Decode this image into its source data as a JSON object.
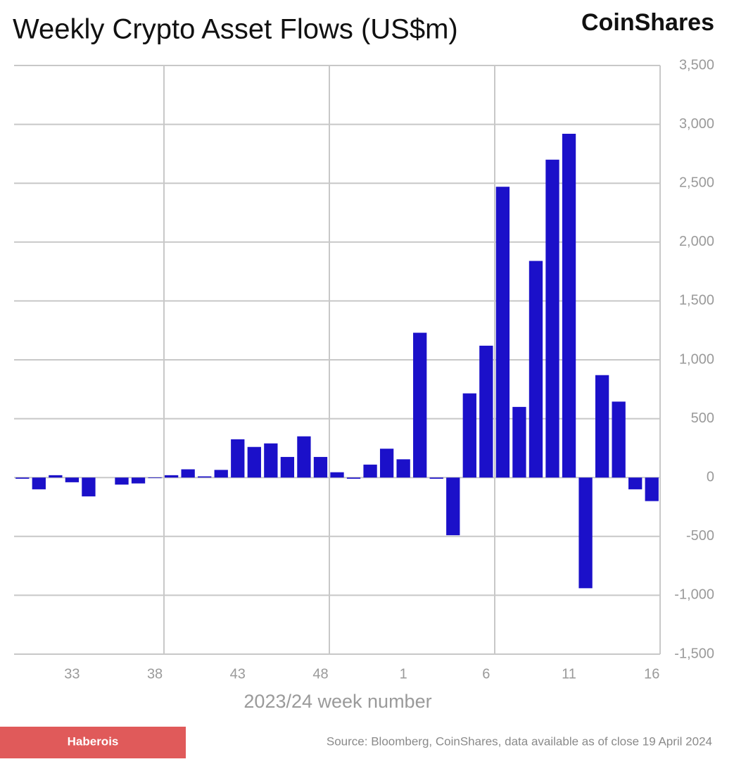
{
  "chart_data": {
    "type": "bar",
    "title": "Weekly Crypto Asset Flows (US$m)",
    "brand": "CoinShares",
    "x_label": "2023/24 week number",
    "source": "Source: Bloomberg, CoinShares, data available as of close 19 April 2024",
    "watermark": "Haberois",
    "categories": [
      null,
      null,
      null,
      "33",
      null,
      null,
      null,
      null,
      "38",
      null,
      null,
      null,
      null,
      "43",
      null,
      null,
      null,
      null,
      "48",
      null,
      null,
      null,
      null,
      "1",
      null,
      null,
      null,
      null,
      "6",
      null,
      null,
      null,
      null,
      "11",
      null,
      null,
      null,
      null,
      "16"
    ],
    "values": [
      -10,
      -100,
      20,
      -40,
      -160,
      0,
      -60,
      -50,
      -5,
      20,
      70,
      10,
      65,
      325,
      260,
      290,
      175,
      350,
      175,
      45,
      -10,
      110,
      245,
      155,
      1230,
      -10,
      -490,
      715,
      1120,
      2470,
      600,
      1840,
      2700,
      2920,
      -940,
      870,
      645,
      -100,
      -200
    ],
    "color": "#1b10c9",
    "ylim": [
      -1500,
      3500
    ],
    "yticks": [
      {
        "value": -1500,
        "label": "-1,500"
      },
      {
        "value": -1000,
        "label": "-1,000"
      },
      -500,
      0,
      500,
      {
        "value": 1000,
        "label": "1,000"
      },
      {
        "value": 1500,
        "label": "1,500"
      },
      {
        "value": 2000,
        "label": "2,000"
      },
      {
        "value": 2500,
        "label": "2,500"
      },
      {
        "value": 3000,
        "label": "3,000"
      },
      {
        "value": 3500,
        "label": "3,500"
      }
    ],
    "grid": true
  }
}
